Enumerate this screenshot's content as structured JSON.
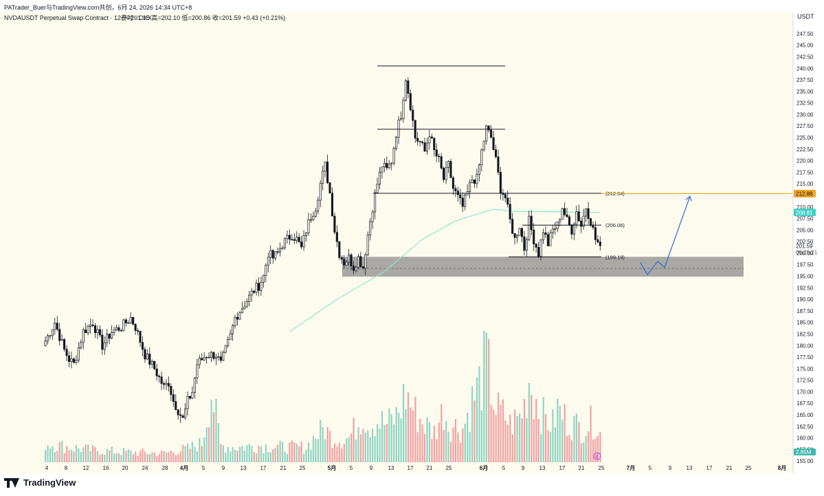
{
  "header": {
    "attribution": "PATrader_Buer与TradingView.com共创，6月 24, 2026 14:34 UTC+8",
    "symbol_line": "NVDAUSDT Perpetual Swap Contract · 12小时 · OKX",
    "ohlc": "开=201.15  高=202.10  低=200.86  收=201.59  +0.43 (+0.21%)",
    "currency": "USDT"
  },
  "footer": {
    "brand": "TradingView"
  },
  "colors": {
    "up": "#131722",
    "down": "#131722",
    "vol_up": "#8fd4c4",
    "vol_down": "#f2a0a0",
    "ma": "#8ee6d2",
    "resistance": "#f5a623",
    "zone": "#8c8c8c",
    "path": "#3a6fd8"
  },
  "chart_data": {
    "type": "candlestick",
    "ylim": [
      155,
      250
    ],
    "y_ticks": [
      "247.50",
      "245.00",
      "242.50",
      "240.00",
      "237.50",
      "235.00",
      "232.50",
      "230.00",
      "227.50",
      "225.00",
      "222.50",
      "220.00",
      "217.50",
      "215.00",
      "212.50",
      "210.00",
      "207.50",
      "205.00",
      "202.50",
      "200.00",
      "197.50",
      "195.00",
      "192.50",
      "190.00",
      "187.50",
      "185.00",
      "182.50",
      "180.00",
      "177.50",
      "175.00",
      "172.50",
      "170.00",
      "167.50",
      "165.00",
      "162.50",
      "160.00",
      "157.50",
      "155.00"
    ],
    "x_ticks": [
      "4",
      "8",
      "12",
      "16",
      "20",
      "24",
      "28",
      "4月",
      "5",
      "9",
      "13",
      "17",
      "21",
      "25",
      "5月",
      "5",
      "9",
      "13",
      "17",
      "21",
      "25",
      "6月",
      "5",
      "9",
      "13",
      "17",
      "21",
      "25",
      "7月",
      "5",
      "9",
      "13",
      "17",
      "21",
      "25",
      "8月"
    ],
    "price_labels": {
      "resistance": "212.88",
      "ma_value": "208.81",
      "last": "201.59",
      "countdown": "05:25:21",
      "volume": "2.85M"
    },
    "levels": [
      {
        "label": "(212.94)",
        "value": 212.94
      },
      {
        "label": "(206.06)",
        "value": 206.06
      },
      {
        "label": "(199.19)",
        "value": 199.19
      }
    ],
    "resistance_value": 212.88,
    "top_lines": [
      240.5,
      226.8
    ],
    "zone": [
      194.9,
      199.2
    ],
    "projected_path": [
      [
        0,
        198.0
      ],
      [
        4,
        195.3
      ],
      [
        10,
        198.2
      ],
      [
        14,
        196.9
      ],
      [
        24,
        212.3
      ]
    ],
    "candle_path": [
      [
        0,
        181
      ],
      [
        4,
        185
      ],
      [
        8,
        179
      ],
      [
        10,
        177
      ],
      [
        12,
        176
      ],
      [
        16,
        183
      ],
      [
        20,
        185
      ],
      [
        24,
        180
      ],
      [
        28,
        183
      ],
      [
        32,
        184
      ],
      [
        36,
        186
      ],
      [
        38,
        184
      ],
      [
        42,
        178
      ],
      [
        46,
        175
      ],
      [
        50,
        171
      ],
      [
        52,
        172
      ],
      [
        54,
        168
      ],
      [
        56,
        166
      ],
      [
        58,
        164
      ],
      [
        60,
        168
      ],
      [
        62,
        170
      ],
      [
        64,
        176
      ],
      [
        68,
        178
      ],
      [
        72,
        178
      ],
      [
        74,
        176
      ],
      [
        76,
        179
      ],
      [
        78,
        182
      ],
      [
        80,
        186
      ],
      [
        84,
        189
      ],
      [
        88,
        192
      ],
      [
        90,
        193
      ],
      [
        92,
        195
      ],
      [
        94,
        200
      ],
      [
        96,
        199
      ],
      [
        98,
        200
      ],
      [
        100,
        202
      ],
      [
        104,
        204
      ],
      [
        106,
        203
      ],
      [
        108,
        201
      ],
      [
        110,
        205
      ],
      [
        112,
        208
      ],
      [
        114,
        210
      ],
      [
        116,
        215
      ],
      [
        118,
        219
      ],
      [
        120,
        213
      ],
      [
        122,
        205
      ],
      [
        124,
        200
      ],
      [
        126,
        198
      ],
      [
        128,
        199
      ],
      [
        130,
        197
      ],
      [
        132,
        199
      ],
      [
        134,
        197
      ],
      [
        136,
        204
      ],
      [
        138,
        210
      ],
      [
        140,
        215
      ],
      [
        142,
        219
      ],
      [
        144,
        218
      ],
      [
        146,
        220
      ],
      [
        148,
        226
      ],
      [
        150,
        230
      ],
      [
        152,
        238
      ],
      [
        154,
        232
      ],
      [
        156,
        225
      ],
      [
        158,
        224
      ],
      [
        160,
        222
      ],
      [
        162,
        226
      ],
      [
        164,
        222
      ],
      [
        166,
        220
      ],
      [
        168,
        216
      ],
      [
        170,
        219
      ],
      [
        172,
        214
      ],
      [
        174,
        212
      ],
      [
        176,
        210
      ],
      [
        178,
        213
      ],
      [
        180,
        216
      ],
      [
        182,
        216
      ],
      [
        184,
        222
      ],
      [
        186,
        227
      ],
      [
        188,
        225
      ],
      [
        190,
        220
      ],
      [
        192,
        214
      ],
      [
        194,
        212
      ],
      [
        196,
        207
      ],
      [
        198,
        203
      ],
      [
        200,
        206
      ],
      [
        202,
        201
      ],
      [
        204,
        207
      ],
      [
        206,
        203
      ],
      [
        208,
        200
      ],
      [
        210,
        205
      ],
      [
        212,
        202
      ],
      [
        214,
        205
      ],
      [
        216,
        206
      ],
      [
        218,
        210
      ],
      [
        220,
        207
      ],
      [
        222,
        205
      ],
      [
        224,
        209
      ],
      [
        226,
        206
      ],
      [
        228,
        210
      ],
      [
        230,
        207
      ],
      [
        232,
        203
      ],
      [
        234,
        201.6
      ]
    ],
    "ma_path": [
      [
        0,
        183
      ],
      [
        20,
        190
      ],
      [
        40,
        196
      ],
      [
        56,
        203
      ],
      [
        70,
        207
      ],
      [
        86,
        209.5
      ],
      [
        96,
        209
      ],
      [
        110,
        209
      ],
      [
        122,
        208.8
      ]
    ],
    "volume_path": [
      [
        0,
        2.5
      ],
      [
        10,
        2.0
      ],
      [
        20,
        1.6
      ],
      [
        30,
        1.4
      ],
      [
        40,
        1.3
      ],
      [
        50,
        1.2
      ],
      [
        60,
        1.8
      ],
      [
        66,
        2.5
      ],
      [
        70,
        9.5
      ],
      [
        74,
        2.2
      ],
      [
        80,
        2.0
      ],
      [
        90,
        2.2
      ],
      [
        100,
        2.0
      ],
      [
        110,
        2.0
      ],
      [
        114,
        3.5
      ],
      [
        116,
        4.0
      ],
      [
        118,
        4.5
      ],
      [
        120,
        3.5
      ],
      [
        124,
        3.0
      ],
      [
        128,
        3.2
      ],
      [
        130,
        4.2
      ],
      [
        134,
        6.5
      ],
      [
        136,
        5.0
      ],
      [
        140,
        5.5
      ],
      [
        144,
        5.0
      ],
      [
        148,
        6.0
      ],
      [
        152,
        9.0
      ],
      [
        156,
        6.5
      ],
      [
        160,
        5.0
      ],
      [
        164,
        4.0
      ],
      [
        166,
        5.5
      ],
      [
        168,
        7.0
      ],
      [
        170,
        5.0
      ],
      [
        176,
        4.5
      ],
      [
        180,
        8.0
      ],
      [
        184,
        11.0
      ],
      [
        186,
        13.5
      ],
      [
        188,
        10.0
      ],
      [
        190,
        7.0
      ],
      [
        194,
        6.0
      ],
      [
        196,
        5.0
      ],
      [
        200,
        6.0
      ],
      [
        202,
        7.5
      ],
      [
        204,
        11.0
      ],
      [
        206,
        9.0
      ],
      [
        210,
        6.0
      ],
      [
        214,
        5.0
      ],
      [
        216,
        7.0
      ],
      [
        220,
        5.5
      ],
      [
        226,
        4.5
      ],
      [
        232,
        5.5
      ],
      [
        234,
        3.8
      ]
    ]
  }
}
